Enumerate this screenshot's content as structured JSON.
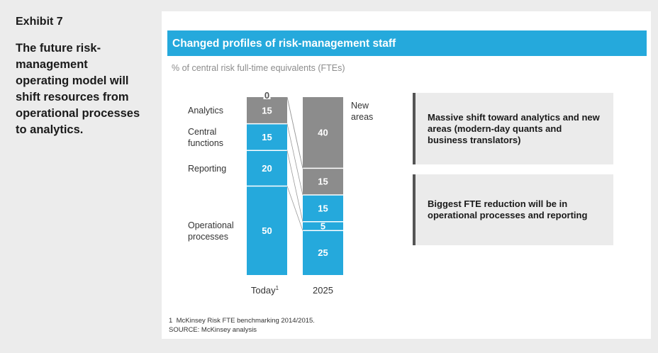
{
  "exhibit": "Exhibit 7",
  "headline": "The future risk-management operating model will shift resources from operational processes to analytics.",
  "chart_header": "Changed profiles of risk-management staff",
  "unit_label": "% of central risk full-time equivalents (FTEs)",
  "colors": {
    "blue": "#25a9dc",
    "gray": "#8c8c8c"
  },
  "chart_data": {
    "type": "bar",
    "stacked": true,
    "categories": [
      "Today",
      "2025"
    ],
    "category_footnotes": [
      "1",
      ""
    ],
    "ylabel": "% of central risk full-time equivalents (FTEs)",
    "ylim": [
      0,
      100
    ],
    "series": [
      {
        "name": "Operational processes",
        "values": [
          50,
          25
        ],
        "color": "#25a9dc"
      },
      {
        "name": "Reporting",
        "values": [
          20,
          5
        ],
        "color": "#25a9dc"
      },
      {
        "name": "Central functions",
        "values": [
          15,
          15
        ],
        "color": "#25a9dc"
      },
      {
        "name": "Analytics",
        "values": [
          15,
          15
        ],
        "color": "#8c8c8c"
      },
      {
        "name": "New areas",
        "values": [
          0,
          40
        ],
        "color": "#8c8c8c"
      }
    ]
  },
  "callouts": [
    "Massive shift toward analytics and new areas (modern-day quants and business translators)",
    "Biggest FTE reduction will be in operational processes and reporting"
  ],
  "footnote": "McKinsey Risk FTE benchmarking 2014/2015.",
  "footnote_marker": "1",
  "source": "SOURCE: McKinsey analysis"
}
